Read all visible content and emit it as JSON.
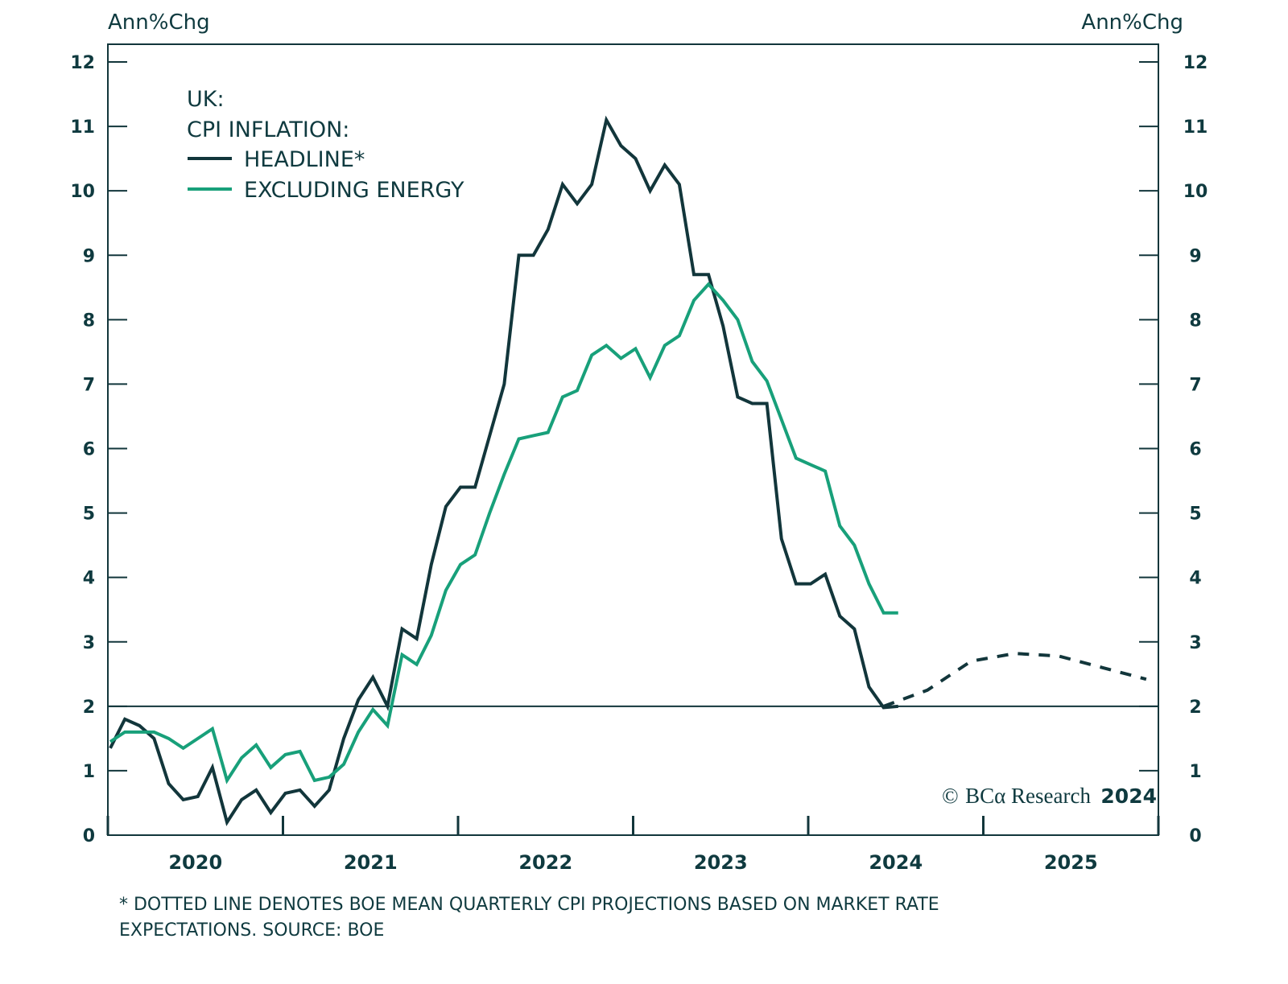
{
  "chart_data": {
    "type": "line",
    "title": "",
    "left_axis_label": "Ann%Chg",
    "right_axis_label": "Ann%Chg",
    "ylim": [
      0,
      12
    ],
    "yticks": [
      0,
      1,
      2,
      3,
      4,
      5,
      6,
      7,
      8,
      9,
      10,
      11,
      12
    ],
    "xlim": [
      "2019-12",
      "2025-12"
    ],
    "xtick_labels": [
      "2020",
      "2021",
      "2022",
      "2023",
      "2024",
      "2025"
    ],
    "reference_line": 2,
    "legend": {
      "placement": "top-left",
      "title_lines": [
        "UK:",
        "CPI INFLATION:"
      ],
      "entries": [
        {
          "name": "HEADLINE*",
          "color": "#12363b"
        },
        {
          "name": "EXCLUDING ENERGY",
          "color": "#18a07a"
        }
      ]
    },
    "series": [
      {
        "name": "HEADLINE*",
        "color": "#12363b",
        "start": "2019-12",
        "frequency": "monthly",
        "values": [
          1.35,
          1.8,
          1.7,
          1.5,
          0.8,
          0.55,
          0.6,
          1.05,
          0.2,
          0.55,
          0.7,
          0.35,
          0.65,
          0.7,
          0.45,
          0.7,
          1.5,
          2.1,
          2.45,
          2.0,
          3.2,
          3.05,
          4.2,
          5.1,
          5.4,
          5.4,
          6.2,
          7.0,
          9.0,
          9.0,
          9.4,
          10.1,
          9.8,
          10.1,
          11.1,
          10.7,
          10.5,
          10.0,
          10.4,
          10.1,
          8.7,
          8.7,
          7.9,
          6.8,
          6.7,
          6.7,
          4.6,
          3.9,
          3.9,
          4.05,
          3.4,
          3.2,
          2.3,
          1.98,
          2.0
        ]
      },
      {
        "name": "EXCLUDING ENERGY",
        "color": "#18a07a",
        "start": "2019-12",
        "frequency": "monthly",
        "values": [
          1.45,
          1.6,
          1.6,
          1.6,
          1.5,
          1.35,
          1.5,
          1.65,
          0.85,
          1.2,
          1.4,
          1.05,
          1.25,
          1.3,
          0.85,
          0.9,
          1.1,
          1.6,
          1.95,
          1.7,
          2.8,
          2.65,
          3.1,
          3.8,
          4.2,
          4.35,
          5.0,
          5.6,
          6.15,
          6.2,
          6.25,
          6.8,
          6.9,
          7.45,
          7.6,
          7.4,
          7.55,
          7.1,
          7.6,
          7.75,
          8.3,
          8.55,
          8.3,
          8.0,
          7.35,
          7.05,
          6.45,
          5.85,
          5.75,
          5.65,
          4.8,
          4.5,
          3.9,
          3.45,
          3.45
        ]
      },
      {
        "name": "BOE PROJECTION",
        "color": "#12363b",
        "style": "dashed",
        "start": "2024-05",
        "frequency": "quarterly",
        "values": [
          2.0,
          2.25,
          2.7,
          2.82,
          2.78,
          2.6,
          2.42
        ]
      }
    ],
    "footnote": "* DOTTED LINE DENOTES BOE MEAN QUARTERLY CPI PROJECTIONS BASED ON MARKET RATE EXPECTATIONS. SOURCE: BOE",
    "footnote_lines": [
      "* DOTTED LINE DENOTES BOE MEAN QUARTERLY CPI PROJECTIONS BASED ON MARKET RATE",
      "EXPECTATIONS. SOURCE: BOE"
    ],
    "copyright": {
      "symbol": "©",
      "brand": "BCα Research",
      "year": "2024"
    }
  }
}
